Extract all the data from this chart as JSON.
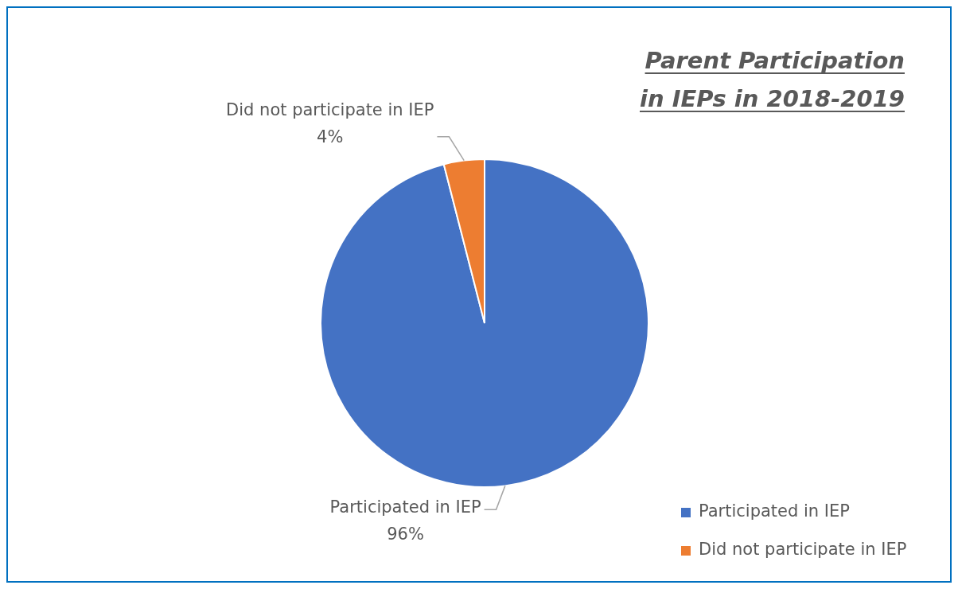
{
  "chart_data": {
    "type": "pie",
    "title": "Parent Participation in IEPs in 2018-2019",
    "categories": [
      "Participated in IEP",
      "Did not participate in IEP"
    ],
    "values": [
      96,
      4
    ],
    "colors": [
      "#4472c4",
      "#ed7d31"
    ],
    "value_labels": [
      "96%",
      "4%"
    ],
    "legend": "bottom right"
  }
}
